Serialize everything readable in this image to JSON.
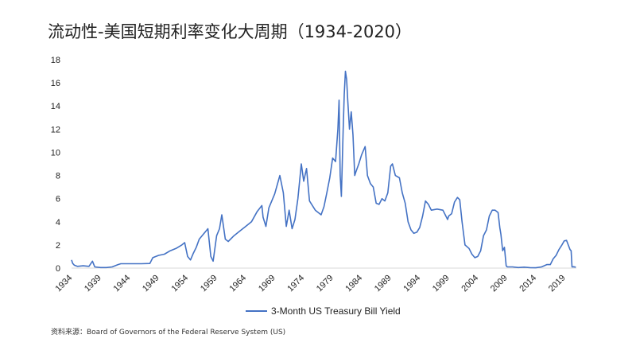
{
  "page": {
    "title": "流动性-美国短期利率变化大周期（1934-2020）",
    "source": "资料来源：Board of Governors of the Federal Reserve System (US)"
  },
  "chart_data": {
    "type": "line",
    "title": "流动性-美国短期利率变化大周期（1934-2020）",
    "xlabel": "",
    "ylabel": "",
    "xlim": [
      1934,
      2021
    ],
    "ylim": [
      0,
      18
    ],
    "yticks": [
      0,
      2,
      4,
      6,
      8,
      10,
      12,
      14,
      16,
      18
    ],
    "xticks": [
      1934,
      1939,
      1944,
      1949,
      1954,
      1959,
      1964,
      1969,
      1974,
      1979,
      1984,
      1989,
      1994,
      1999,
      2004,
      2009,
      2014,
      2019
    ],
    "legend_position": "bottom",
    "grid": false,
    "color": "#4472C4",
    "series": [
      {
        "name": "3-Month US Treasury Bill Yield",
        "x": [
          1934.0,
          1934.2,
          1934.5,
          1935.0,
          1936.0,
          1937.0,
          1937.6,
          1938.0,
          1939.0,
          1940.0,
          1941.0,
          1942.0,
          1942.5,
          1946.0,
          1947.5,
          1948.0,
          1949.0,
          1950.0,
          1951.0,
          1952.0,
          1953.0,
          1953.5,
          1954.0,
          1954.5,
          1955.0,
          1955.5,
          1956.0,
          1957.0,
          1957.5,
          1958.0,
          1958.4,
          1959.0,
          1959.5,
          1959.9,
          1960.5,
          1961.0,
          1962.0,
          1963.0,
          1964.0,
          1965.0,
          1966.0,
          1966.8,
          1967.0,
          1967.5,
          1968.0,
          1969.0,
          1969.9,
          1970.5,
          1971.0,
          1971.5,
          1972.0,
          1972.5,
          1973.0,
          1973.6,
          1974.0,
          1974.5,
          1975.0,
          1976.0,
          1977.0,
          1977.5,
          1978.0,
          1978.5,
          1979.0,
          1979.5,
          1979.9,
          1980.1,
          1980.3,
          1980.5,
          1980.8,
          1981.0,
          1981.2,
          1981.4,
          1981.6,
          1981.9,
          1982.2,
          1982.5,
          1982.8,
          1983.0,
          1983.5,
          1984.0,
          1984.6,
          1985.0,
          1985.5,
          1986.0,
          1986.5,
          1987.0,
          1987.5,
          1988.0,
          1988.5,
          1989.0,
          1989.3,
          1989.8,
          1990.5,
          1991.0,
          1991.5,
          1992.0,
          1992.5,
          1993.0,
          1993.5,
          1994.0,
          1994.5,
          1995.0,
          1995.5,
          1996.0,
          1997.0,
          1998.0,
          1998.8,
          1999.0,
          1999.5,
          2000.0,
          2000.5,
          2000.9,
          2001.3,
          2001.8,
          2002.5,
          2003.0,
          2003.5,
          2004.0,
          2004.5,
          2005.0,
          2005.5,
          2006.0,
          2006.5,
          2007.0,
          2007.5,
          2007.8,
          2008.0,
          2008.3,
          2008.6,
          2008.9,
          2009.1,
          2010.0,
          2011.0,
          2012.0,
          2013.0,
          2014.0,
          2015.0,
          2015.9,
          2016.5,
          2017.0,
          2017.5,
          2018.0,
          2018.5,
          2018.9,
          2019.3,
          2019.6,
          2019.9,
          2020.1,
          2020.25,
          2020.5,
          2020.9
        ],
        "values": [
          0.7,
          0.4,
          0.25,
          0.15,
          0.2,
          0.15,
          0.6,
          0.1,
          0.05,
          0.05,
          0.1,
          0.3,
          0.375,
          0.375,
          0.4,
          0.9,
          1.1,
          1.2,
          1.5,
          1.7,
          2.0,
          2.2,
          1.0,
          0.7,
          1.3,
          1.8,
          2.5,
          3.1,
          3.4,
          1.0,
          0.6,
          2.8,
          3.4,
          4.6,
          2.5,
          2.3,
          2.8,
          3.2,
          3.6,
          4.0,
          4.9,
          5.4,
          4.4,
          3.6,
          5.2,
          6.4,
          8.0,
          6.5,
          3.6,
          5.0,
          3.4,
          4.2,
          6.0,
          9.0,
          7.5,
          8.6,
          5.8,
          5.0,
          4.6,
          5.3,
          6.5,
          7.8,
          9.5,
          9.2,
          12.0,
          14.5,
          8.0,
          6.2,
          11.8,
          15.0,
          17.0,
          16.3,
          14.5,
          12.0,
          13.5,
          11.5,
          8.0,
          8.3,
          9.0,
          9.8,
          10.5,
          8.0,
          7.3,
          7.0,
          5.6,
          5.5,
          6.0,
          5.8,
          6.5,
          8.8,
          9.0,
          8.0,
          7.8,
          6.5,
          5.6,
          4.0,
          3.3,
          3.0,
          3.1,
          3.5,
          4.5,
          5.8,
          5.5,
          5.0,
          5.1,
          5.0,
          4.2,
          4.5,
          4.7,
          5.7,
          6.1,
          5.9,
          4.0,
          2.0,
          1.7,
          1.2,
          0.9,
          1.0,
          1.5,
          2.8,
          3.3,
          4.5,
          5.0,
          5.0,
          4.8,
          3.5,
          2.9,
          1.5,
          1.8,
          0.2,
          0.1,
          0.1,
          0.05,
          0.08,
          0.04,
          0.03,
          0.1,
          0.3,
          0.3,
          0.8,
          1.1,
          1.6,
          2.0,
          2.35,
          2.4,
          2.0,
          1.6,
          1.5,
          0.1,
          0.12,
          0.08
        ]
      }
    ]
  }
}
